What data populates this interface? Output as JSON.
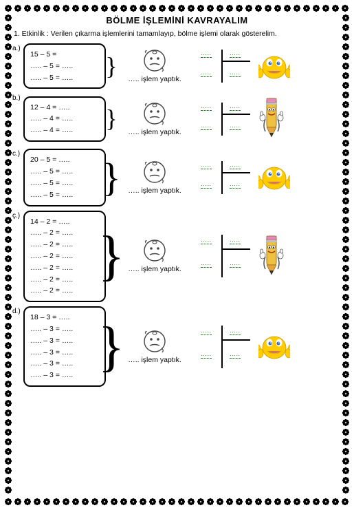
{
  "title": "BÖLME  İŞLEMİNİ KAVRAYALIM",
  "instruction": "1. Etkinlik : Verilen çıkarma işlemlerini tamamlayıp, bölme işlemi olarak gösterelim.",
  "mid_text": "….. işlem yaptık.",
  "dots": "…..",
  "activities": [
    {
      "letter": "a.)",
      "lines": [
        "15 – 5 =",
        "….. – 5 = …..",
        "….. – 5 = ….."
      ],
      "mascot": "emoji",
      "brace": "small"
    },
    {
      "letter": "b.)",
      "lines": [
        "12 – 4 = …..",
        "….. – 4 = …..",
        "….. – 4 = ….."
      ],
      "mascot": "pencil",
      "brace": "small"
    },
    {
      "letter": "c.)",
      "lines": [
        "20 – 5 = …..",
        "….. – 5 = …..",
        "….. – 5 = …..",
        "….. – 5 = ….."
      ],
      "mascot": "emoji",
      "brace": "tall"
    },
    {
      "letter": "ç.)",
      "lines": [
        "14 – 2 = …..",
        "….. – 2 = …..",
        "….. – 2 = …..",
        "….. – 2 = …..",
        "….. – 2 = …..",
        "….. – 2 = …..",
        "….. – 2 = ….."
      ],
      "mascot": "pencil",
      "brace": "vtall"
    },
    {
      "letter": "d.)",
      "lines": [
        "18 – 3 = …..",
        "….. – 3 = …..",
        "….. – 3 = …..",
        "….. – 3 = …..",
        "….. – 3 = …..",
        "….. – 3 = ….."
      ],
      "mascot": "emoji",
      "brace": "vtall"
    }
  ],
  "colors": {
    "emoji_body": "#ffcc00",
    "emoji_shadow": "#f5a623",
    "emoji_eye": "#3a66c4",
    "pencil_body": "#f0c040",
    "pencil_tip": "#e8a33d",
    "pencil_eraser": "#e68ab8",
    "dots_color": "#2a7a2a"
  }
}
